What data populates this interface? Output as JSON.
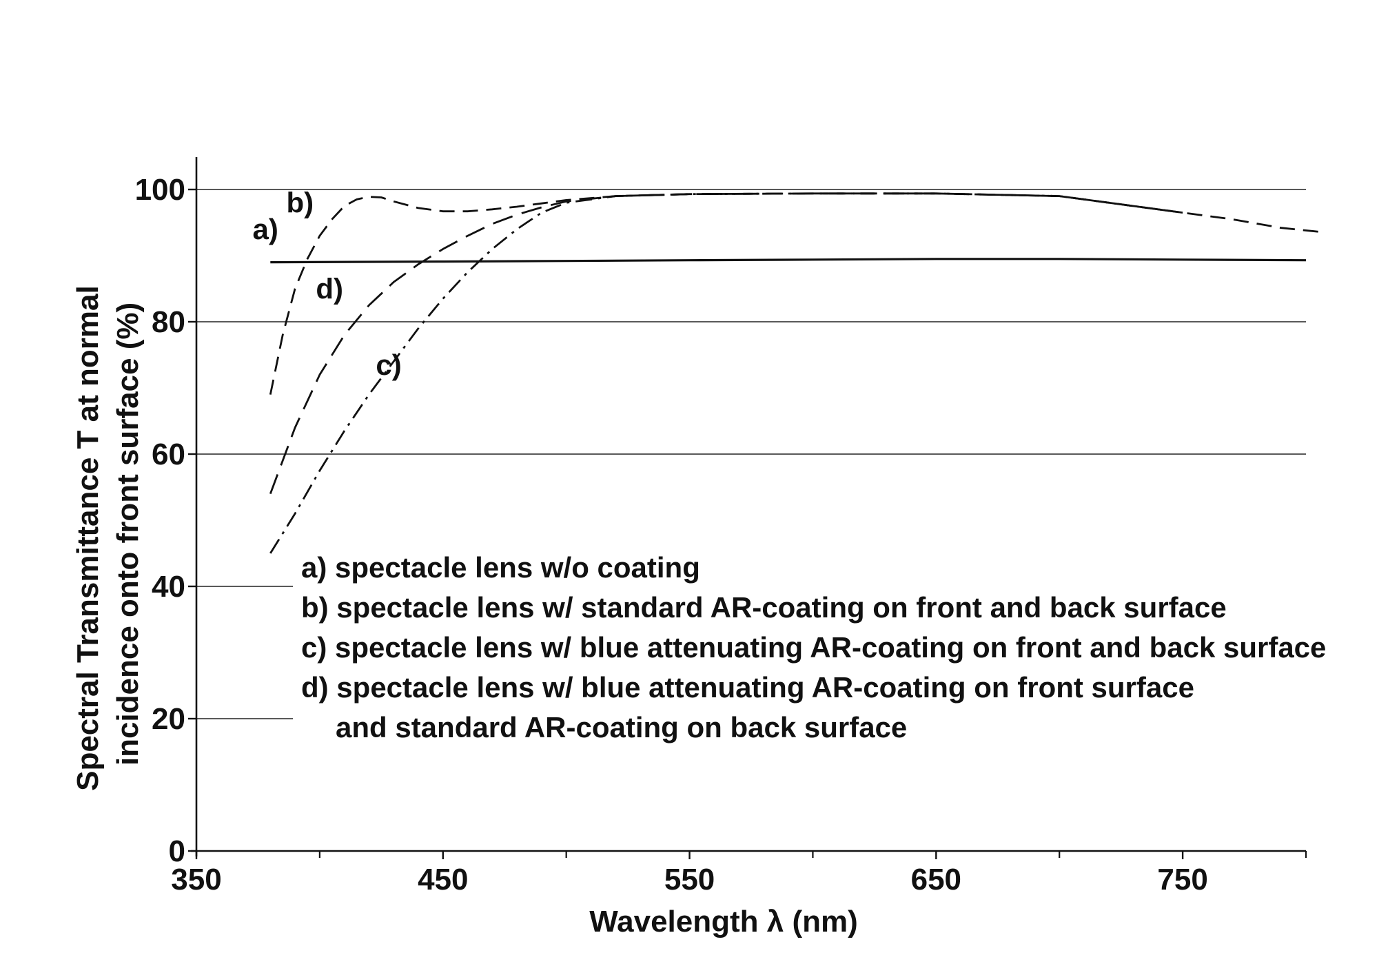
{
  "chart_data": {
    "type": "line",
    "xlabel": "Wavelength λ (nm)",
    "ylabel_lines": [
      "Spectral Transmittance T at normal",
      "incidence onto front surface (%)"
    ],
    "xlim": [
      350,
      800
    ],
    "ylim": [
      0,
      100
    ],
    "x_ticks": [
      350,
      450,
      550,
      650,
      750
    ],
    "x_minor_ticks": [
      400,
      500,
      600,
      700,
      800
    ],
    "y_ticks": [
      0,
      20,
      40,
      60,
      80,
      100
    ],
    "x_tick_labels": [
      "350",
      "450",
      "550",
      "650",
      "750"
    ],
    "y_tick_labels": [
      "0",
      "20",
      "40",
      "60",
      "80",
      "100"
    ],
    "grid": "horizontal",
    "series": [
      {
        "name": "a)",
        "style": "solid",
        "x": [
          380,
          450,
          500,
          550,
          600,
          650,
          700,
          750,
          800
        ],
        "y": [
          89,
          89.1,
          89.2,
          89.3,
          89.4,
          89.5,
          89.5,
          89.4,
          89.3
        ]
      },
      {
        "name": "b)",
        "style": "dashed",
        "x": [
          380,
          385,
          390,
          395,
          400,
          405,
          410,
          415,
          420,
          425,
          430,
          440,
          450,
          460,
          470,
          480,
          490,
          500,
          520,
          550,
          600,
          650,
          700,
          750,
          770,
          790,
          808
        ],
        "y": [
          69,
          78,
          85,
          89.5,
          93,
          95.5,
          97.5,
          98.5,
          98.9,
          98.8,
          98.2,
          97.2,
          96.7,
          96.7,
          97,
          97.4,
          97.9,
          98.4,
          99,
          99.3,
          99.4,
          99.4,
          99,
          96.5,
          95.5,
          94.2,
          93.5
        ]
      },
      {
        "name": "c)",
        "style": "dashdot",
        "x": [
          380,
          390,
          400,
          410,
          420,
          430,
          440,
          450,
          460,
          470,
          480,
          490,
          500,
          520,
          550,
          600,
          650,
          700,
          750
        ],
        "y": [
          45,
          51,
          57.5,
          63.5,
          69,
          74,
          79,
          83.5,
          87.5,
          91,
          94,
          96.5,
          98,
          99,
          99.3,
          99.4,
          99.4,
          99,
          96.5
        ]
      },
      {
        "name": "d)",
        "style": "longdash",
        "x": [
          380,
          390,
          400,
          410,
          420,
          430,
          440,
          450,
          460,
          470,
          480,
          490,
          500,
          520,
          550,
          600,
          650,
          700,
          750
        ],
        "y": [
          54,
          64,
          72,
          78,
          82.5,
          86,
          88.7,
          91,
          93,
          94.8,
          96.2,
          97.3,
          98.2,
          99,
          99.3,
          99.4,
          99.4,
          99,
          96.5
        ]
      }
    ],
    "curve_labels": [
      {
        "text": "a)",
        "x": 378,
        "y": 92.5
      },
      {
        "text": "b)",
        "x": 392,
        "y": 96.5
      },
      {
        "text": "d)",
        "x": 404,
        "y": 83.5
      },
      {
        "text": "c)",
        "x": 428,
        "y": 72
      }
    ],
    "legend": {
      "placement": "bottom-center",
      "entries": [
        "a) spectacle lens w/o coating",
        "b) spectacle lens w/ standard AR-coating on front and back surface",
        "c) spectacle lens w/ blue attenuating AR-coating on front and back surface",
        "d) spectacle lens w/ blue attenuating AR-coating on front surface",
        "and standard AR-coating on back surface"
      ]
    }
  }
}
